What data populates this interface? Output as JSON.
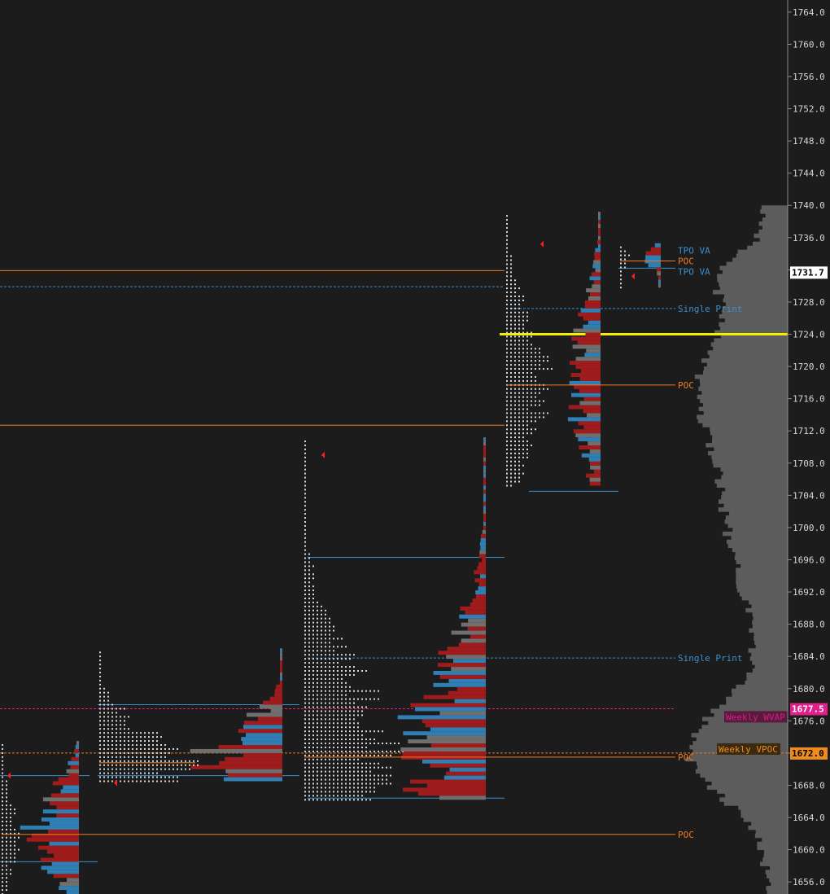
{
  "colors": {
    "background": "#1c1c1c",
    "volume_red": "#a01c1c",
    "volume_blue": "#2f7fb5",
    "volume_gray": "#6f6f6f",
    "tpo_dots": "#d8d8d8",
    "poc_orange": "#f07a20",
    "va_blue": "#3a8fd0",
    "wvap_pink": "#e0208a",
    "highlight_yellow": "#f5ee00",
    "axis_text": "#d6d6d6"
  },
  "chart_data": {
    "type": "market-profile",
    "y_axis": {
      "min": 1654.5,
      "max": 1765.5,
      "ticks": [
        1656.0,
        1660.0,
        1664.0,
        1668.0,
        1672.0,
        1676.0,
        1680.0,
        1684.0,
        1688.0,
        1692.0,
        1696.0,
        1700.0,
        1704.0,
        1708.0,
        1712.0,
        1716.0,
        1720.0,
        1724.0,
        1728.0,
        1732.0,
        1736.0,
        1740.0,
        1744.0,
        1748.0,
        1752.0,
        1756.0,
        1760.0,
        1764.0
      ],
      "tick_labels": [
        "1656.0",
        "1660.0",
        "1664.0",
        "1668.0",
        "1672.0",
        "1676.0",
        "1680.0",
        "1684.0",
        "1688.0",
        "1692.0",
        "1696.0",
        "1700.0",
        "1704.0",
        "1708.0",
        "1712.0",
        "1716.0",
        "1720.0",
        "1724.0",
        "1728.0",
        "1732.0",
        "1736.0",
        "1740.0",
        "1744.0",
        "1748.0",
        "1752.0",
        "1756.0",
        "1760.0",
        "1764.0"
      ]
    },
    "price_badges": [
      {
        "label": "1731.7",
        "value": 1731.7,
        "bg": "#ffffff",
        "fg": "#000000"
      },
      {
        "label": "1677.5",
        "value": 1677.5,
        "bg": "#e0208a",
        "fg": "#ffffff"
      },
      {
        "label": "1672.0",
        "value": 1672.0,
        "bg": "#f08c1e",
        "fg": "#000000"
      }
    ],
    "level_tags": [
      {
        "label": "TPO VA",
        "value": 1734.4,
        "color": "#3a8fd0"
      },
      {
        "label": "POC",
        "value": 1733.1,
        "color": "#f07a20"
      },
      {
        "label": "TPO VA",
        "value": 1731.8,
        "color": "#3a8fd0"
      },
      {
        "label": "Single Print",
        "value": 1727.2,
        "color": "#3a8fd0"
      },
      {
        "label": "POC",
        "value": 1717.7,
        "color": "#f07a20"
      },
      {
        "label": "Single Print",
        "value": 1683.8,
        "color": "#3a8fd0"
      },
      {
        "label": "POC",
        "value": 1671.5,
        "color": "#f07a20"
      },
      {
        "label": "POC",
        "value": 1661.9,
        "color": "#f07a20"
      }
    ],
    "weekly_labels": [
      {
        "label": "Weekly WVAP",
        "value": 1676.5,
        "color": "#d02080"
      },
      {
        "label": "Weekly VPOC",
        "value": 1672.5,
        "color": "#f08c1e"
      }
    ],
    "highlight_level": 1724.0,
    "weekly_vwap_level": 1677.5,
    "weekly_vpoc_level": 1672.0,
    "sessions": [
      {
        "low": 1654.5,
        "high": 1673.2,
        "poc": 1661.9,
        "tpo_width": 25,
        "vol_width": 65,
        "pocline_to": 830
      },
      {
        "low": 1668.5,
        "high": 1684.8,
        "poc": 1670.8,
        "tpo_width": 120,
        "vol_width": 100,
        "pocline_to": 240
      },
      {
        "low": 1666.2,
        "high": 1710.8,
        "poc": 1671.5,
        "tpo_width": 115,
        "vol_width": 100,
        "pocline_to": 830
      },
      {
        "low": 1705.2,
        "high": 1738.8,
        "poc": 1717.7,
        "tpo_width": 55,
        "vol_width": 40,
        "pocline_to": 830
      },
      {
        "low": 1729.8,
        "high": 1735.2,
        "poc": 1733.1,
        "tpo_width": 15,
        "vol_width": 18,
        "pocline_to": 830
      }
    ],
    "naked_pocs": [
      1731.9,
      1712.7
    ],
    "va_lines": [
      1729.0,
      1696.3,
      1683.8,
      1677.5,
      1669.2,
      1658.5
    ]
  }
}
